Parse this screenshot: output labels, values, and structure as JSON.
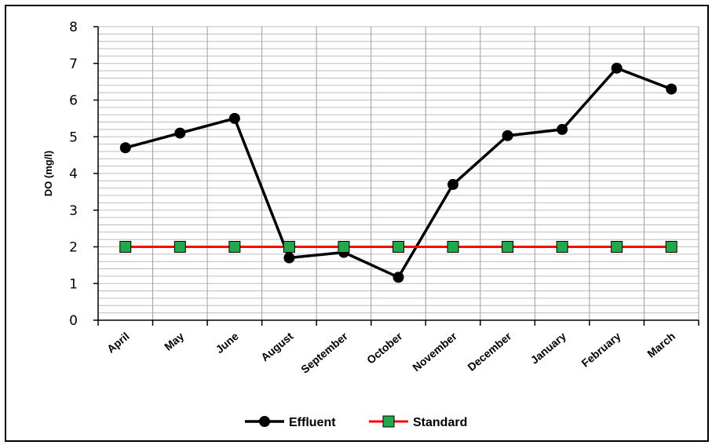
{
  "chart_data": {
    "type": "line",
    "title": "",
    "xlabel": "",
    "ylabel": "DO (mg/l)",
    "ylim": [
      0,
      8
    ],
    "yticks": [
      0,
      1,
      2,
      3,
      4,
      5,
      6,
      7,
      8
    ],
    "grid": true,
    "legend_position": "bottom",
    "categories": [
      "April",
      "May",
      "June",
      "August",
      "September",
      "October",
      "November",
      "December",
      "January",
      "February",
      "March"
    ],
    "series": [
      {
        "name": "Effluent",
        "color": "#000000",
        "marker": "circle",
        "values": [
          4.7,
          5.1,
          5.5,
          1.7,
          1.85,
          1.17,
          3.7,
          5.03,
          5.2,
          6.87,
          6.3
        ]
      },
      {
        "name": "Standard",
        "color": "#ff0000",
        "marker": "square",
        "marker_color": "#22a84a",
        "values": [
          2,
          2,
          2,
          2,
          2,
          2,
          2,
          2,
          2,
          2,
          2
        ]
      }
    ]
  }
}
